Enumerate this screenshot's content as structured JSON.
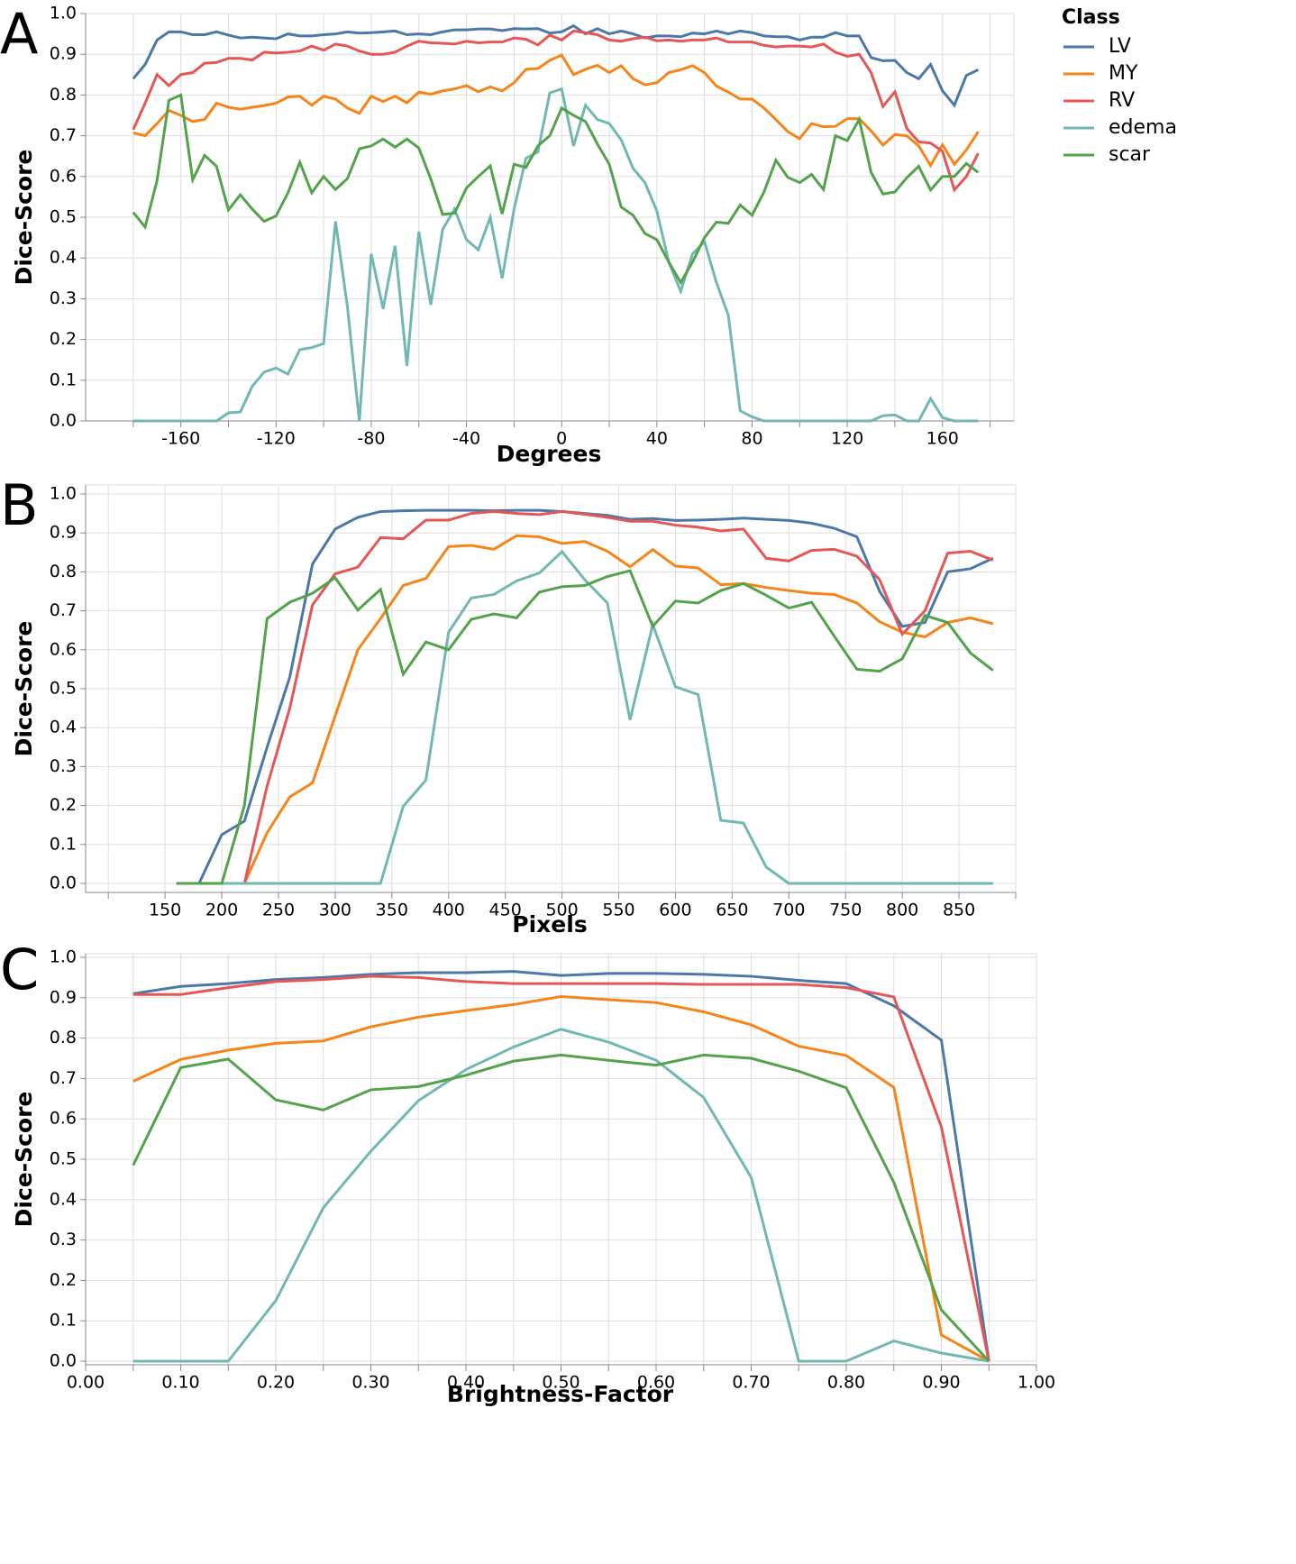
{
  "chart_data": [
    {
      "type": "line",
      "panel_label": "A",
      "x_label": "Degrees",
      "y_label": "Dice-Score",
      "legend_title": "Class",
      "x": [
        -180,
        -175,
        -170,
        -165,
        -160,
        -155,
        -150,
        -145,
        -140,
        -135,
        -130,
        -125,
        -120,
        -115,
        -110,
        -105,
        -100,
        -95,
        -90,
        -85,
        -80,
        -75,
        -70,
        -65,
        -60,
        -55,
        -50,
        -45,
        -40,
        -35,
        -30,
        -25,
        -20,
        -15,
        -10,
        -5,
        0,
        5,
        10,
        15,
        20,
        25,
        30,
        35,
        40,
        45,
        50,
        55,
        60,
        65,
        70,
        75,
        80,
        85,
        90,
        95,
        100,
        105,
        110,
        115,
        120,
        125,
        130,
        135,
        140,
        145,
        150,
        155,
        160,
        165,
        170,
        175
      ],
      "series": [
        {
          "name": "LV",
          "color": "#4c78a8",
          "values": [
            0.84,
            0.875,
            0.935,
            0.955,
            0.955,
            0.948,
            0.948,
            0.955,
            0.947,
            0.94,
            0.942,
            0.94,
            0.938,
            0.95,
            0.945,
            0.945,
            0.948,
            0.95,
            0.955,
            0.952,
            0.953,
            0.955,
            0.957,
            0.948,
            0.95,
            0.948,
            0.955,
            0.96,
            0.96,
            0.962,
            0.962,
            0.958,
            0.963,
            0.962,
            0.963,
            0.952,
            0.955,
            0.97,
            0.95,
            0.963,
            0.95,
            0.957,
            0.95,
            0.94,
            0.945,
            0.945,
            0.943,
            0.952,
            0.95,
            0.957,
            0.95,
            0.957,
            0.953,
            0.945,
            0.943,
            0.943,
            0.935,
            0.942,
            0.942,
            0.953,
            0.945,
            0.945,
            0.892,
            0.884,
            0.885,
            0.855,
            0.84,
            0.875,
            0.81,
            0.775,
            0.848,
            0.862
          ]
        },
        {
          "name": "MY",
          "color": "#f58518",
          "values": [
            0.707,
            0.7,
            0.73,
            0.762,
            0.75,
            0.735,
            0.74,
            0.78,
            0.77,
            0.765,
            0.77,
            0.774,
            0.78,
            0.795,
            0.797,
            0.775,
            0.797,
            0.79,
            0.768,
            0.755,
            0.797,
            0.784,
            0.797,
            0.781,
            0.807,
            0.802,
            0.81,
            0.815,
            0.823,
            0.808,
            0.82,
            0.81,
            0.83,
            0.863,
            0.865,
            0.885,
            0.898,
            0.85,
            0.863,
            0.873,
            0.855,
            0.872,
            0.84,
            0.825,
            0.83,
            0.855,
            0.862,
            0.872,
            0.855,
            0.822,
            0.807,
            0.79,
            0.79,
            0.768,
            0.74,
            0.71,
            0.693,
            0.73,
            0.722,
            0.723,
            0.742,
            0.742,
            0.712,
            0.677,
            0.703,
            0.7,
            0.675,
            0.627,
            0.678,
            0.63,
            0.665,
            0.71
          ]
        },
        {
          "name": "RV",
          "color": "#e45756",
          "values": [
            0.715,
            0.78,
            0.85,
            0.823,
            0.85,
            0.855,
            0.878,
            0.88,
            0.89,
            0.89,
            0.886,
            0.905,
            0.903,
            0.905,
            0.908,
            0.92,
            0.91,
            0.925,
            0.92,
            0.908,
            0.9,
            0.9,
            0.905,
            0.92,
            0.932,
            0.928,
            0.927,
            0.925,
            0.932,
            0.928,
            0.93,
            0.93,
            0.94,
            0.937,
            0.923,
            0.947,
            0.935,
            0.957,
            0.953,
            0.948,
            0.935,
            0.932,
            0.938,
            0.942,
            0.933,
            0.935,
            0.932,
            0.935,
            0.935,
            0.94,
            0.93,
            0.93,
            0.93,
            0.922,
            0.918,
            0.92,
            0.92,
            0.918,
            0.925,
            0.905,
            0.895,
            0.9,
            0.855,
            0.772,
            0.808,
            0.718,
            0.685,
            0.682,
            0.662,
            0.567,
            0.6,
            0.657
          ]
        },
        {
          "name": "edema",
          "color": "#72b7b2",
          "values": [
            0,
            0,
            0,
            0,
            0,
            0,
            0,
            0,
            0.02,
            0.022,
            0.085,
            0.12,
            0.13,
            0.115,
            0.175,
            0.18,
            0.19,
            0.49,
            0.28,
            0,
            0.41,
            0.275,
            0.43,
            0.135,
            0.465,
            0.285,
            0.47,
            0.52,
            0.445,
            0.42,
            0.5,
            0.35,
            0.52,
            0.645,
            0.66,
            0.805,
            0.815,
            0.675,
            0.775,
            0.74,
            0.73,
            0.69,
            0.62,
            0.585,
            0.515,
            0.39,
            0.318,
            0.41,
            0.44,
            0.34,
            0.26,
            0.025,
            0.01,
            0,
            0,
            0,
            0,
            0,
            0,
            0,
            0,
            0,
            0,
            0.013,
            0.015,
            0,
            0,
            0.055,
            0.008,
            0,
            0,
            0
          ]
        },
        {
          "name": "scar",
          "color": "#54a24b",
          "values": [
            0.512,
            0.476,
            0.59,
            0.787,
            0.8,
            0.592,
            0.652,
            0.625,
            0.518,
            0.555,
            0.52,
            0.49,
            0.503,
            0.56,
            0.635,
            0.56,
            0.6,
            0.568,
            0.595,
            0.668,
            0.675,
            0.692,
            0.672,
            0.692,
            0.67,
            0.594,
            0.507,
            0.51,
            0.572,
            0.6,
            0.626,
            0.508,
            0.63,
            0.622,
            0.675,
            0.7,
            0.768,
            0.75,
            0.735,
            0.68,
            0.63,
            0.525,
            0.505,
            0.46,
            0.445,
            0.39,
            0.34,
            0.39,
            0.45,
            0.488,
            0.485,
            0.53,
            0.505,
            0.562,
            0.64,
            0.598,
            0.585,
            0.605,
            0.568,
            0.7,
            0.688,
            0.74,
            0.61,
            0.557,
            0.562,
            0.597,
            0.625,
            0.567,
            0.6,
            0.6,
            0.632,
            0.61
          ]
        }
      ],
      "xlim": [
        -200,
        190
      ],
      "xticks": [
        -160,
        -120,
        -80,
        -40,
        0,
        40,
        80,
        120,
        160
      ],
      "minor_xticks": [
        -180,
        -140,
        -100,
        -60,
        -20,
        20,
        60,
        100,
        140,
        180
      ],
      "ylim": [
        0,
        1
      ],
      "yticks": [
        {
          "value": 0,
          "label": "0.0"
        },
        0.1,
        0.2,
        0.3,
        0.4,
        0.5,
        0.6,
        0.7,
        0.8,
        0.9,
        {
          "value": 1,
          "label": "1.0"
        }
      ],
      "grid": true
    },
    {
      "type": "line",
      "panel_label": "B",
      "x_label": "Pixels",
      "y_label": "Dice-Score",
      "x": [
        160,
        180,
        200,
        220,
        240,
        260,
        280,
        300,
        320,
        340,
        360,
        380,
        400,
        420,
        440,
        460,
        480,
        500,
        520,
        540,
        560,
        580,
        600,
        620,
        640,
        660,
        680,
        700,
        720,
        740,
        760,
        780,
        800,
        820,
        840,
        860,
        880
      ],
      "series": [
        {
          "name": "LV",
          "color": "#4c78a8",
          "values": [
            0,
            0,
            0.125,
            0.16,
            0.35,
            0.53,
            0.82,
            0.91,
            0.94,
            0.955,
            0.957,
            0.958,
            0.958,
            0.958,
            0.957,
            0.958,
            0.958,
            0.955,
            0.95,
            0.945,
            0.935,
            0.937,
            0.932,
            0.933,
            0.935,
            0.938,
            0.935,
            0.932,
            0.925,
            0.912,
            0.89,
            0.75,
            0.66,
            0.67,
            0.8,
            0.808,
            0.835
          ]
        },
        {
          "name": "MY",
          "color": "#f58518",
          "values": [
            0,
            0,
            0,
            0,
            0.13,
            0.222,
            0.258,
            0.43,
            0.6,
            0.68,
            0.765,
            0.783,
            0.865,
            0.868,
            0.858,
            0.893,
            0.89,
            0.873,
            0.878,
            0.853,
            0.813,
            0.857,
            0.815,
            0.81,
            0.767,
            0.77,
            0.76,
            0.752,
            0.745,
            0.742,
            0.72,
            0.672,
            0.645,
            0.633,
            0.67,
            0.682,
            0.667
          ]
        },
        {
          "name": "RV",
          "color": "#e45756",
          "values": [
            0,
            0,
            0,
            0,
            0.25,
            0.45,
            0.715,
            0.795,
            0.812,
            0.888,
            0.885,
            0.933,
            0.933,
            0.95,
            0.955,
            0.95,
            0.947,
            0.955,
            0.948,
            0.94,
            0.93,
            0.93,
            0.92,
            0.915,
            0.905,
            0.91,
            0.835,
            0.828,
            0.855,
            0.858,
            0.84,
            0.78,
            0.64,
            0.7,
            0.848,
            0.853,
            0.83
          ]
        },
        {
          "name": "edema",
          "color": "#72b7b2",
          "values": [
            0,
            0,
            0,
            0,
            0,
            0,
            0,
            0,
            0,
            0,
            0.198,
            0.265,
            0.645,
            0.733,
            0.742,
            0.777,
            0.797,
            0.852,
            0.78,
            0.72,
            0.42,
            0.665,
            0.505,
            0.485,
            0.162,
            0.155,
            0.042,
            0,
            0,
            0,
            0,
            0,
            0,
            0,
            0,
            0,
            0
          ]
        },
        {
          "name": "scar",
          "color": "#54a24b",
          "values": [
            0,
            0,
            0,
            0.2,
            0.68,
            0.722,
            0.745,
            0.785,
            0.702,
            0.755,
            0.537,
            0.62,
            0.6,
            0.678,
            0.692,
            0.682,
            0.748,
            0.762,
            0.765,
            0.788,
            0.803,
            0.66,
            0.725,
            0.72,
            0.752,
            0.77,
            0.74,
            0.707,
            0.722,
            0.635,
            0.55,
            0.545,
            0.577,
            0.688,
            0.67,
            0.592,
            0.547
          ]
        }
      ],
      "xlim": [
        80,
        900
      ],
      "xticks": [
        150,
        200,
        250,
        300,
        350,
        400,
        450,
        500,
        550,
        600,
        650,
        700,
        750,
        800,
        850
      ],
      "minor_xticks": [
        100,
        900
      ],
      "ylim": [
        0,
        1
      ],
      "yticks": [
        {
          "value": 0,
          "label": "0.0"
        },
        0.1,
        0.2,
        0.3,
        0.4,
        0.5,
        0.6,
        0.7,
        0.8,
        0.9,
        {
          "value": 1,
          "label": "1.0"
        }
      ],
      "grid": true
    },
    {
      "type": "line",
      "panel_label": "C",
      "x_label": "Brightness-Factor",
      "y_label": "Dice-Score",
      "x": [
        0.05,
        0.1,
        0.15,
        0.2,
        0.25,
        0.3,
        0.35,
        0.4,
        0.45,
        0.5,
        0.55,
        0.6,
        0.65,
        0.7,
        0.75,
        0.8,
        0.85,
        0.9,
        0.95
      ],
      "series": [
        {
          "name": "LV",
          "color": "#4c78a8",
          "values": [
            0.91,
            0.928,
            0.935,
            0.945,
            0.95,
            0.958,
            0.962,
            0.962,
            0.965,
            0.955,
            0.96,
            0.96,
            0.958,
            0.953,
            0.943,
            0.935,
            0.88,
            0.795,
            0
          ]
        },
        {
          "name": "MY",
          "color": "#f58518",
          "values": [
            0.693,
            0.747,
            0.77,
            0.787,
            0.793,
            0.828,
            0.852,
            0.868,
            0.883,
            0.903,
            0.895,
            0.888,
            0.865,
            0.833,
            0.78,
            0.757,
            0.678,
            0.065,
            0
          ]
        },
        {
          "name": "RV",
          "color": "#e45756",
          "values": [
            0.908,
            0.908,
            0.925,
            0.94,
            0.945,
            0.953,
            0.95,
            0.94,
            0.935,
            0.935,
            0.935,
            0.935,
            0.933,
            0.933,
            0.933,
            0.925,
            0.902,
            0.58,
            0
          ]
        },
        {
          "name": "edema",
          "color": "#72b7b2",
          "values": [
            0,
            0,
            0,
            0.15,
            0.38,
            0.52,
            0.645,
            0.722,
            0.778,
            0.822,
            0.79,
            0.745,
            0.653,
            0.455,
            0,
            0,
            0.05,
            0.02,
            0
          ]
        },
        {
          "name": "scar",
          "color": "#54a24b",
          "values": [
            0.485,
            0.727,
            0.748,
            0.647,
            0.622,
            0.672,
            0.68,
            0.708,
            0.743,
            0.758,
            0.745,
            0.733,
            0.758,
            0.75,
            0.718,
            0.677,
            0.443,
            0.127,
            0
          ]
        }
      ],
      "xlim": [
        0,
        1
      ],
      "xticks": [
        {
          "value": 0,
          "label": "0.00"
        },
        {
          "value": 0.1,
          "label": "0.10"
        },
        {
          "value": 0.2,
          "label": "0.20"
        },
        {
          "value": 0.3,
          "label": "0.30"
        },
        {
          "value": 0.4,
          "label": "0.40"
        },
        {
          "value": 0.5,
          "label": "0.50"
        },
        {
          "value": 0.6,
          "label": "0.60"
        },
        {
          "value": 0.7,
          "label": "0.70"
        },
        {
          "value": 0.8,
          "label": "0.80"
        },
        {
          "value": 0.9,
          "label": "0.90"
        },
        {
          "value": 1,
          "label": "1.00"
        }
      ],
      "minor_xticks": [
        0.05,
        0.15,
        0.25,
        0.35,
        0.45,
        0.55,
        0.65,
        0.75,
        0.85,
        0.95
      ],
      "ylim": [
        0,
        1
      ],
      "yticks": [
        {
          "value": 0,
          "label": "0.0"
        },
        0.1,
        0.2,
        0.3,
        0.4,
        0.5,
        0.6,
        0.7,
        0.8,
        0.9,
        {
          "value": 1,
          "label": "1.0"
        }
      ],
      "grid": true
    }
  ]
}
